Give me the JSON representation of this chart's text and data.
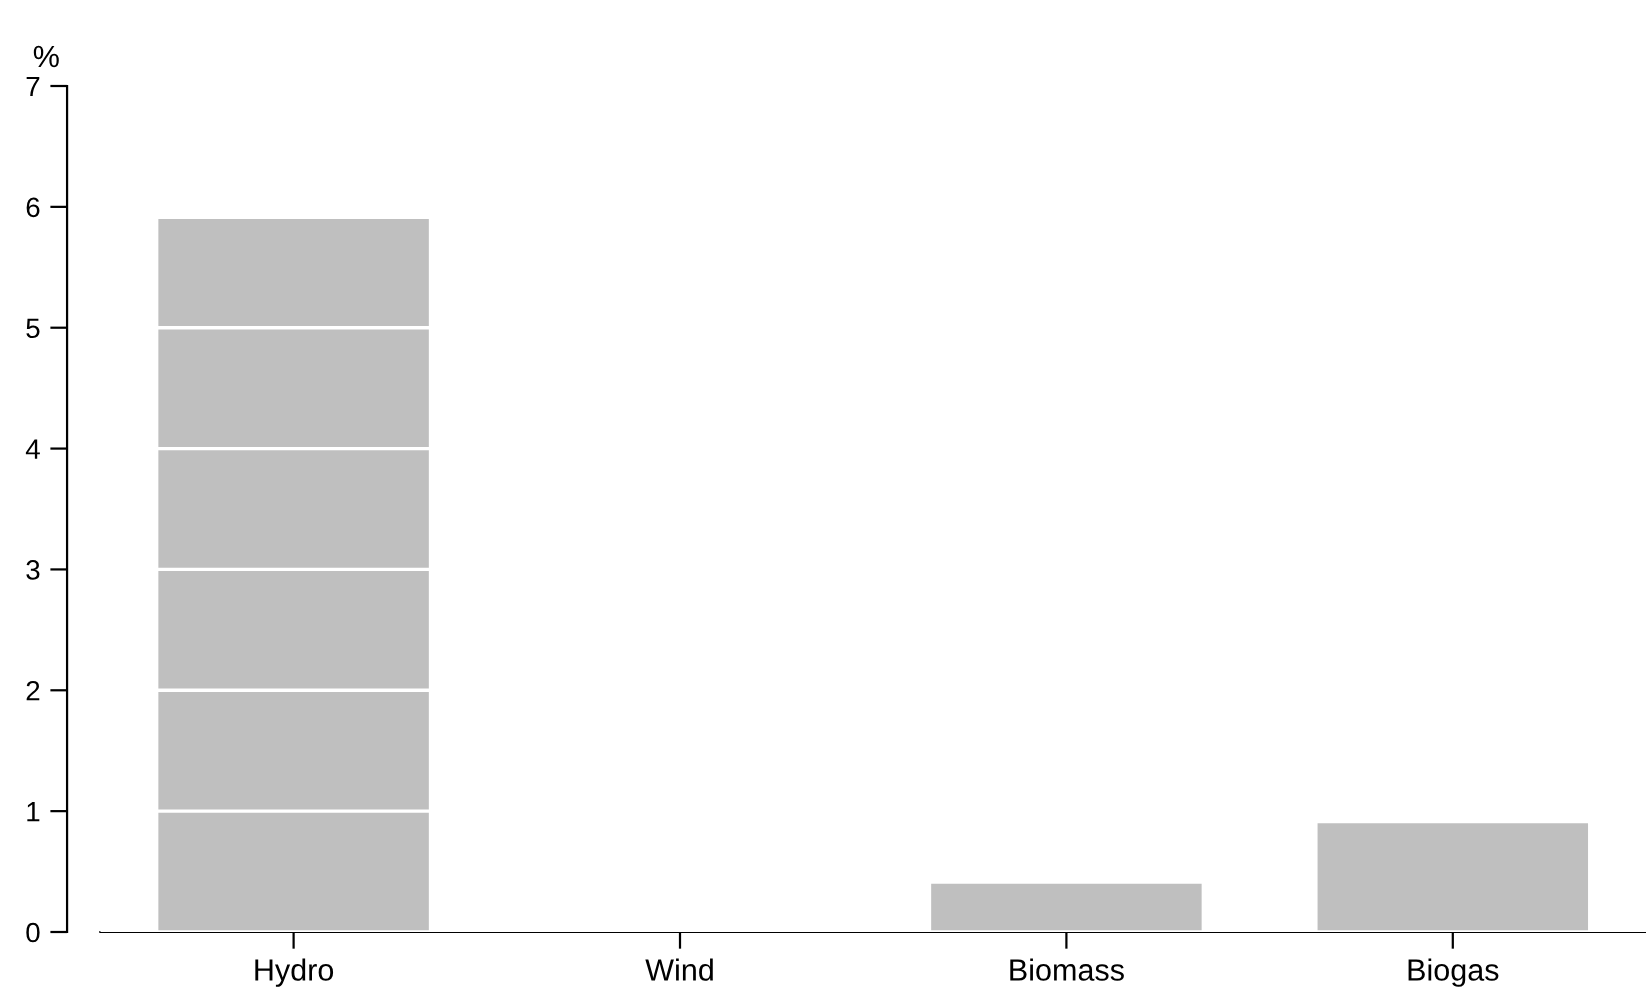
{
  "chart_data": {
    "type": "bar",
    "ylabel": "%",
    "categories": [
      "Hydro",
      "Wind",
      "Biomass",
      "Biogas"
    ],
    "values": [
      5.9,
      0,
      0.4,
      0.9
    ],
    "color": "#bfbfbf",
    "ylim": [
      0,
      7
    ],
    "yticks": [
      0,
      1,
      2,
      3,
      4,
      5,
      6,
      7
    ],
    "grid": "y"
  }
}
